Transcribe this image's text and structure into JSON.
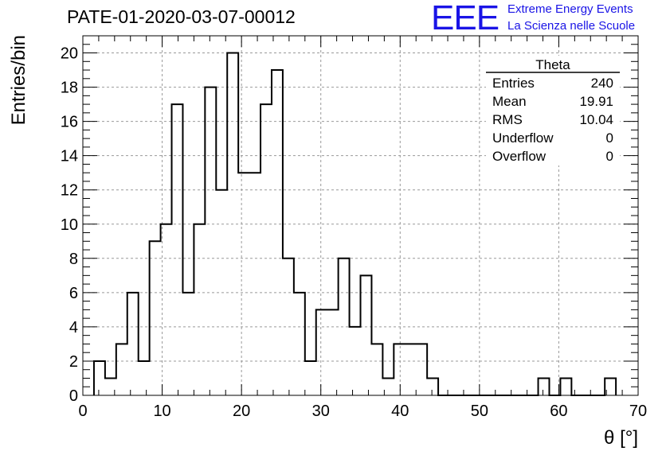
{
  "header": {
    "title": "PATE-01-2020-03-07-00012",
    "logo_text": "EEE",
    "logo_line1": "Extreme Energy Events",
    "logo_line2": "La Scienza nelle Scuole",
    "logo_color": "#1a14e6"
  },
  "stats_box": {
    "name": "Theta",
    "rows": [
      {
        "label": "Entries",
        "value": "240"
      },
      {
        "label": "Mean",
        "value": "19.91"
      },
      {
        "label": "RMS",
        "value": "10.04"
      },
      {
        "label": "Underflow",
        "value": "0"
      },
      {
        "label": "Overflow",
        "value": "0"
      }
    ]
  },
  "chart_data": {
    "type": "bar",
    "style": "step-histogram",
    "title": "PATE-01-2020-03-07-00012",
    "xlabel": "θ [°]",
    "ylabel": "Entries/bin",
    "xlim": [
      0,
      70
    ],
    "ylim": [
      0,
      21
    ],
    "grid": true,
    "x_ticks": [
      0,
      10,
      20,
      30,
      40,
      50,
      60,
      70
    ],
    "y_ticks": [
      0,
      2,
      4,
      6,
      8,
      10,
      12,
      14,
      16,
      18,
      20
    ],
    "bin_width": 1.4,
    "bin_start": 1.4,
    "values": [
      2,
      1,
      3,
      6,
      2,
      9,
      10,
      17,
      6,
      10,
      18,
      12,
      20,
      13,
      13,
      17,
      19,
      8,
      6,
      2,
      5,
      5,
      8,
      4,
      7,
      3,
      1,
      3,
      3,
      3,
      1,
      0,
      0,
      0,
      0,
      0,
      0,
      0,
      0,
      0,
      1,
      0,
      1,
      0,
      0,
      0,
      1
    ]
  }
}
